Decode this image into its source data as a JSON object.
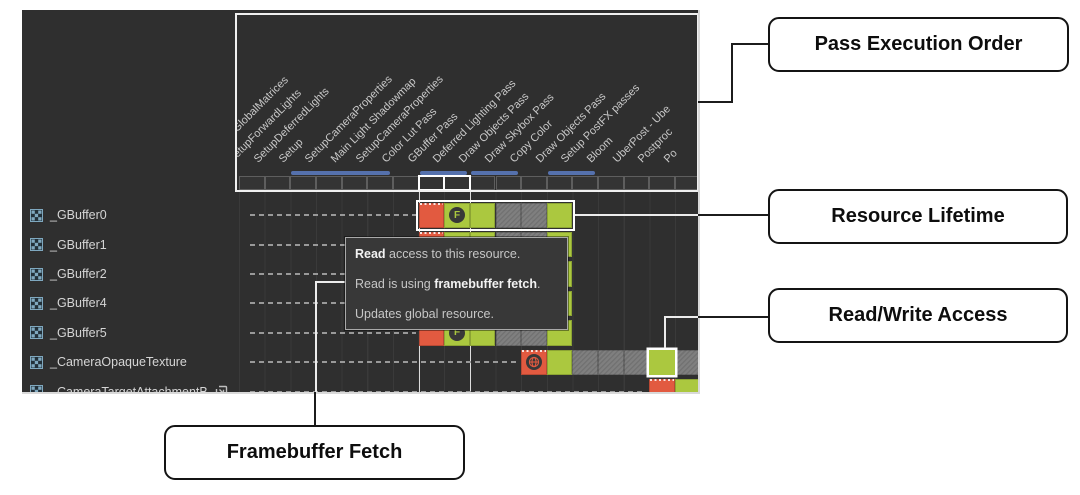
{
  "colors": {
    "red": "#e25a40",
    "green": "#abc83f",
    "gray": "#7f7f7f",
    "blue_bar": "#5571ad",
    "panel_bg": "#2f2f2f",
    "grid_line": "#3a3a3a",
    "pass_label": "#c9c9c9",
    "resource_label": "#d5d5d5",
    "tooltip_bg": "#383838",
    "tooltip_border": "#a9a9a9",
    "tooltip_text": "#c6c6c6",
    "tooltip_strong": "#f2f2f2",
    "white_line": "#ececec",
    "black_line": "#1c1c1c",
    "callout_border": "#141414",
    "badge_bg": "#383838",
    "texture_icon_blue": "#7fa8bf"
  },
  "panel": {
    "passes": [
      "onVectorGlobalMatrices",
      "SetupForwardLights",
      "SetupDeferredLights",
      "Setup",
      "SetupCameraProperties",
      "Main Light Shadowmap",
      "SetupCameraProperties",
      "Color Lut Pass",
      "GBuffer Pass",
      "Deferred Lighting Pass",
      "Draw Objects Pass",
      "Draw Skybox Pass",
      "Copy Color",
      "Draw Objects Pass",
      "Setup PostFX passes",
      "Bloom",
      "UberPost - Ube",
      "Postproc",
      "Po"
    ],
    "highlighted_pass_cols": [
      8,
      9
    ],
    "pass_groups": [
      [
        3,
        6
      ],
      [
        8,
        9
      ],
      [
        10,
        11
      ],
      [
        13,
        14
      ]
    ],
    "resources": [
      {
        "name": "_GBuffer0",
        "highlighted": true,
        "blocks": [
          [
            8,
            "write"
          ],
          [
            9,
            "read-fb"
          ],
          [
            10,
            "read"
          ],
          [
            11,
            "alive"
          ],
          [
            12,
            "alive"
          ],
          [
            13,
            "read"
          ]
        ]
      },
      {
        "name": "_GBuffer1",
        "blocks": [
          [
            8,
            "write"
          ],
          [
            9,
            "read-fb"
          ],
          [
            10,
            "read"
          ],
          [
            11,
            "alive"
          ],
          [
            12,
            "alive"
          ],
          [
            13,
            "read"
          ]
        ]
      },
      {
        "name": "_GBuffer2",
        "blocks": [
          [
            8,
            "write"
          ],
          [
            9,
            "read-fb"
          ],
          [
            10,
            "read"
          ],
          [
            11,
            "alive"
          ],
          [
            12,
            "alive"
          ],
          [
            13,
            "read"
          ]
        ]
      },
      {
        "name": "_GBuffer4",
        "blocks": [
          [
            8,
            "write"
          ],
          [
            9,
            "read-fb"
          ],
          [
            10,
            "read"
          ],
          [
            11,
            "alive"
          ],
          [
            12,
            "alive"
          ],
          [
            13,
            "read"
          ]
        ]
      },
      {
        "name": "_GBuffer5",
        "blocks": [
          [
            8,
            "write"
          ],
          [
            9,
            "read-fb"
          ],
          [
            10,
            "read"
          ],
          [
            11,
            "alive"
          ],
          [
            12,
            "alive"
          ],
          [
            13,
            "read"
          ]
        ]
      },
      {
        "name": "_CameraOpaqueTexture",
        "blocks": [
          [
            12,
            "write-global"
          ],
          [
            13,
            "read"
          ],
          [
            14,
            "alive"
          ],
          [
            15,
            "alive"
          ],
          [
            16,
            "alive"
          ],
          [
            17,
            "read-highlight"
          ],
          [
            18,
            "alive"
          ]
        ]
      },
      {
        "name": "_CameraTargetAttachmentB",
        "imported": true,
        "blocks": [
          [
            17,
            "write"
          ],
          [
            18,
            "read"
          ]
        ]
      }
    ]
  },
  "badges": {
    "framebuffer_fetch": "F"
  },
  "tooltip": {
    "lines": [
      [
        {
          "t": "Read",
          "b": true
        },
        {
          "t": " access to this resource."
        }
      ],
      [
        {
          "t": "Read is using "
        },
        {
          "t": "framebuffer fetch",
          "b": true
        },
        {
          "t": "."
        }
      ],
      [
        {
          "t": "Updates global resource."
        }
      ]
    ]
  },
  "callouts": [
    {
      "label": "Pass Execution Order"
    },
    {
      "label": "Resource Lifetime"
    },
    {
      "label": "Read/Write Access"
    },
    {
      "label": "Framebuffer Fetch"
    }
  ]
}
